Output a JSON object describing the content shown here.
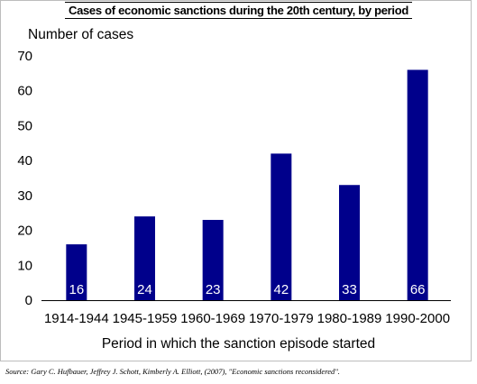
{
  "chart_data": {
    "type": "bar",
    "title": "Cases of economic sanctions during the 20th century, by period",
    "ylabel": "Number of cases",
    "xlabel": "Period in which the sanction episode started",
    "categories": [
      "1914-1944",
      "1945-1959",
      "1960-1969",
      "1970-1979",
      "1980-1989",
      "1990-2000"
    ],
    "values": [
      16,
      24,
      23,
      42,
      33,
      66
    ],
    "data_labels": [
      "16",
      "24",
      "23",
      "42",
      "33",
      "66"
    ],
    "ylim": [
      0,
      70
    ],
    "yticks": [
      "0",
      "10",
      "20",
      "30",
      "40",
      "50",
      "60",
      "70"
    ],
    "grid": false,
    "legend": "none",
    "bar_color": "#00008b"
  },
  "source": "Source: Gary C. Hufbauer, Jeffrey J. Schott, Kimberly A. Elliott, (2007), \"Economic sanctions reconsidered\"."
}
